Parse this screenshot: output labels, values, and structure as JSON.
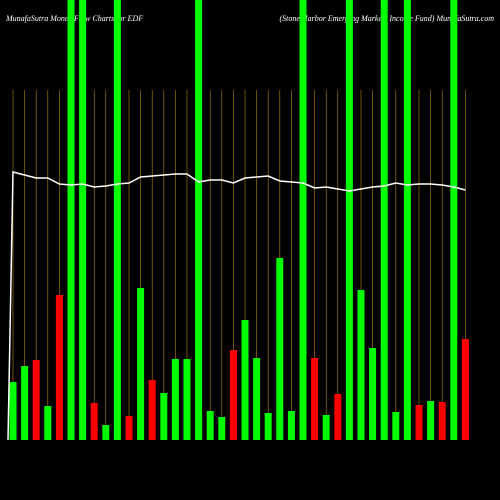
{
  "chart_data": {
    "type": "bar",
    "title": "MunafaSutra Money Flow Charts for EDF",
    "subtitle": "(Stone Harbor Emerging Markets Income Fund) MunafaSutra.com",
    "values": [
      58,
      74,
      80,
      34,
      145,
      440,
      440,
      37,
      15,
      440,
      24,
      152,
      60,
      47,
      81,
      81,
      440,
      29,
      23,
      90,
      120,
      82,
      27,
      182,
      29,
      440,
      82,
      25,
      46,
      440,
      150,
      92,
      440,
      28,
      440,
      35,
      39,
      38,
      440,
      101
    ],
    "colors": [
      "#0f0",
      "#0f0",
      "#f00",
      "#0f0",
      "#f00",
      "#0f0",
      "#0f0",
      "#f00",
      "#0f0",
      "#0f0",
      "#f00",
      "#0f0",
      "#f00",
      "#0f0",
      "#0f0",
      "#0f0",
      "#0f0",
      "#0f0",
      "#0f0",
      "#f00",
      "#0f0",
      "#0f0",
      "#0f0",
      "#0f0",
      "#0f0",
      "#0f0",
      "#f00",
      "#0f0",
      "#f00",
      "#0f0",
      "#0f0",
      "#0f0",
      "#0f0",
      "#0f0",
      "#0f0",
      "#f00",
      "#0f0",
      "#f00",
      "#0f0",
      "#f00"
    ],
    "line_values": [
      268,
      265,
      262,
      262,
      256,
      255,
      256,
      253,
      254,
      256,
      257,
      263,
      264,
      265,
      266,
      266,
      258,
      260,
      260,
      257,
      262,
      263,
      264,
      259,
      258,
      257,
      252,
      253,
      251,
      249,
      251,
      253,
      254,
      257,
      255,
      256,
      256,
      255,
      253,
      250
    ],
    "line_color": "#fff",
    "grid_color": "#b8860b",
    "ylim": [
      0,
      440
    ]
  }
}
